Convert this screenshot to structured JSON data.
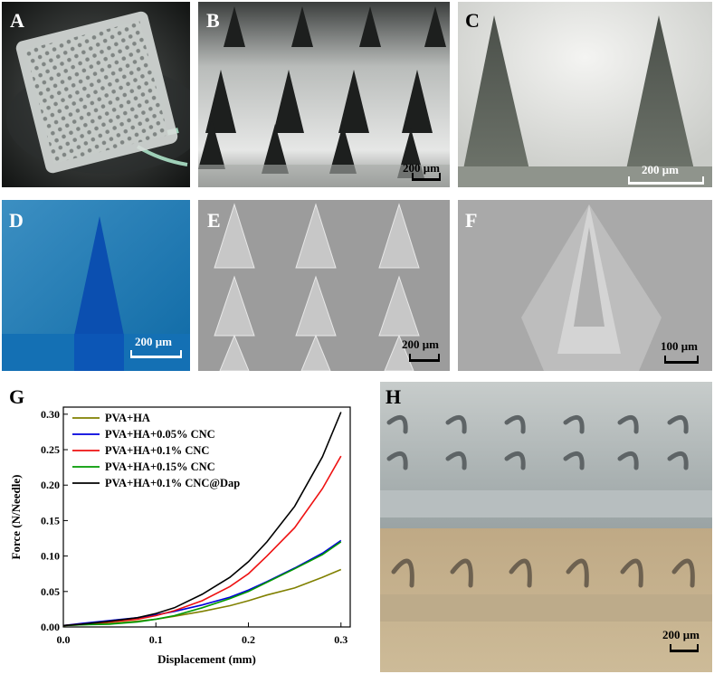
{
  "panels": {
    "A": {
      "label": "A"
    },
    "B": {
      "label": "B",
      "scale": "200 μm"
    },
    "C": {
      "label": "C",
      "scale": "200 μm"
    },
    "D": {
      "label": "D",
      "scale": "200 μm"
    },
    "E": {
      "label": "E",
      "scale": "200 μm"
    },
    "F": {
      "label": "F",
      "scale": "100 μm"
    },
    "G": {
      "label": "G"
    },
    "H": {
      "label": "H",
      "scale": "200 μm"
    }
  },
  "chart_data": {
    "type": "line",
    "xlabel": "Displacement (mm)",
    "ylabel": "Force (N/Needle)",
    "xlim": [
      0.0,
      0.31
    ],
    "ylim": [
      0.0,
      0.31
    ],
    "xticks": [
      "0.0",
      "0.1",
      "0.2",
      "0.3"
    ],
    "yticks": [
      "0.00",
      "0.05",
      "0.10",
      "0.15",
      "0.20",
      "0.25",
      "0.30"
    ],
    "legend_position": "top-left",
    "series": [
      {
        "name": "PVA+HA",
        "color": "#808000",
        "x": [
          0.0,
          0.02,
          0.05,
          0.08,
          0.1,
          0.12,
          0.15,
          0.18,
          0.2,
          0.22,
          0.25,
          0.28,
          0.3
        ],
        "y": [
          0.002,
          0.003,
          0.005,
          0.008,
          0.011,
          0.015,
          0.022,
          0.03,
          0.037,
          0.045,
          0.055,
          0.07,
          0.081
        ]
      },
      {
        "name": "PVA+HA+0.05% CNC",
        "color": "#0000dd",
        "x": [
          0.0,
          0.02,
          0.05,
          0.08,
          0.1,
          0.12,
          0.15,
          0.18,
          0.2,
          0.22,
          0.25,
          0.28,
          0.3
        ],
        "y": [
          0.002,
          0.005,
          0.009,
          0.013,
          0.017,
          0.022,
          0.031,
          0.042,
          0.052,
          0.064,
          0.083,
          0.104,
          0.122
        ]
      },
      {
        "name": "PVA+HA+0.1% CNC",
        "color": "#ee1111",
        "x": [
          0.0,
          0.02,
          0.05,
          0.08,
          0.1,
          0.12,
          0.15,
          0.18,
          0.2,
          0.22,
          0.25,
          0.28,
          0.3
        ],
        "y": [
          0.002,
          0.004,
          0.007,
          0.011,
          0.016,
          0.023,
          0.037,
          0.057,
          0.075,
          0.1,
          0.14,
          0.195,
          0.241
        ]
      },
      {
        "name": "PVA+HA+0.15% CNC",
        "color": "#009900",
        "x": [
          0.0,
          0.02,
          0.05,
          0.08,
          0.1,
          0.12,
          0.15,
          0.18,
          0.2,
          0.22,
          0.25,
          0.28,
          0.3
        ],
        "y": [
          0.002,
          0.003,
          0.004,
          0.007,
          0.011,
          0.016,
          0.027,
          0.04,
          0.05,
          0.063,
          0.082,
          0.102,
          0.12
        ]
      },
      {
        "name": "PVA+HA+0.1% CNC@Dap",
        "color": "#000000",
        "x": [
          0.0,
          0.02,
          0.05,
          0.08,
          0.1,
          0.12,
          0.15,
          0.18,
          0.2,
          0.22,
          0.25,
          0.28,
          0.3
        ],
        "y": [
          0.002,
          0.004,
          0.008,
          0.013,
          0.019,
          0.027,
          0.046,
          0.07,
          0.092,
          0.12,
          0.17,
          0.24,
          0.303
        ]
      }
    ]
  }
}
